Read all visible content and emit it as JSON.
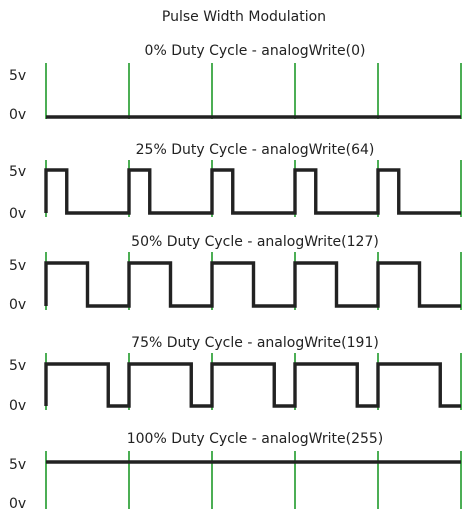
{
  "title": "Pulse Width Modulation",
  "colors": {
    "grid": "#1f9a2a",
    "signal": "#222222",
    "background": "#ffffff"
  },
  "levels": {
    "high": "5v",
    "low": "0v"
  },
  "panels": [
    {
      "label": "0% Duty Cycle - analogWrite(0)",
      "duty_percent": 0,
      "analog_value": 0
    },
    {
      "label": "25% Duty Cycle - analogWrite(64)",
      "duty_percent": 25,
      "analog_value": 64
    },
    {
      "label": "50% Duty Cycle - analogWrite(127)",
      "duty_percent": 50,
      "analog_value": 127
    },
    {
      "label": "75% Duty Cycle - analogWrite(191)",
      "duty_percent": 75,
      "analog_value": 191
    },
    {
      "label": "100% Duty Cycle - analogWrite(255)",
      "duty_percent": 100,
      "analog_value": 255
    }
  ],
  "periods_shown": 5
}
